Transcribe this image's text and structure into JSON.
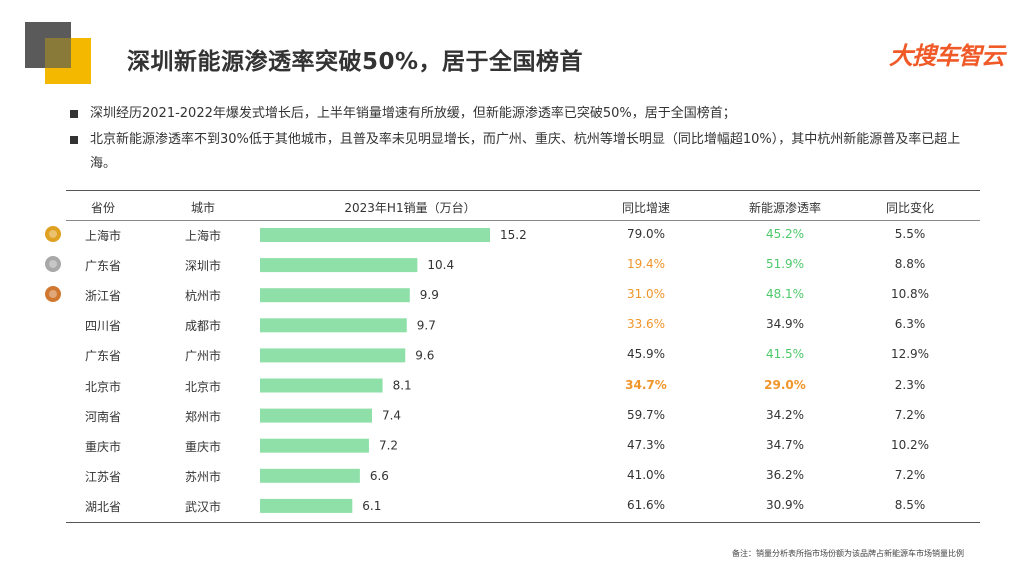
{
  "title": "深圳新能源渗透率突破50%，居于全国榜首",
  "logo": "大搜车智云",
  "bullets": [
    "深圳经历2021-2022年爆发式增长后，上半年销量增速有所放缓，但新能源渗透率已突破50%，居于全国榜首；",
    "北京新能源渗透率不到30%低于其他城市，且普及率未见明显增长，而广州、重庆、杭州等增长明显（同比增幅超10%），其中杭州新能源普及率已超上海。"
  ],
  "headers": {
    "province": "省份",
    "city": "城市",
    "sales": "2023年H1销量（万台）",
    "yoy": "同比增速",
    "penetration": "新能源渗透率",
    "change": "同比变化"
  },
  "colors": {
    "bar": "#8ee0a8",
    "green": "#4dc96a",
    "orange": "#f0952a",
    "normal": "#333333",
    "gold": "#e0a020",
    "silver": "#a8a8a8",
    "bronze": "#d07830"
  },
  "chart_data": {
    "type": "bar",
    "orientation": "horizontal",
    "categories": [
      "上海市",
      "深圳市",
      "杭州市",
      "成都市",
      "广州市",
      "北京市",
      "郑州市",
      "重庆市",
      "苏州市",
      "武汉市"
    ],
    "values": [
      15.2,
      10.4,
      9.9,
      9.7,
      9.6,
      8.1,
      7.4,
      7.2,
      6.6,
      6.1
    ],
    "xlabel": "2023年H1销量（万台）"
  },
  "rows": [
    {
      "province": "上海市",
      "city": "上海市",
      "sales": "15.2",
      "yoy": "79.0%",
      "yoy_style": "normal",
      "pen": "45.2%",
      "pen_style": "green",
      "change": "5.5%",
      "medal": "gold"
    },
    {
      "province": "广东省",
      "city": "深圳市",
      "sales": "10.4",
      "yoy": "19.4%",
      "yoy_style": "orange",
      "pen": "51.9%",
      "pen_style": "green",
      "change": "8.8%",
      "medal": "silver"
    },
    {
      "province": "浙江省",
      "city": "杭州市",
      "sales": "9.9",
      "yoy": "31.0%",
      "yoy_style": "orange",
      "pen": "48.1%",
      "pen_style": "green",
      "change": "10.8%",
      "medal": "bronze"
    },
    {
      "province": "四川省",
      "city": "成都市",
      "sales": "9.7",
      "yoy": "33.6%",
      "yoy_style": "orange",
      "pen": "34.9%",
      "pen_style": "normal",
      "change": "6.3%",
      "medal": ""
    },
    {
      "province": "广东省",
      "city": "广州市",
      "sales": "9.6",
      "yoy": "45.9%",
      "yoy_style": "normal",
      "pen": "41.5%",
      "pen_style": "green",
      "change": "12.9%",
      "medal": ""
    },
    {
      "province": "北京市",
      "city": "北京市",
      "sales": "8.1",
      "yoy": "34.7%",
      "yoy_style": "orange-bold",
      "pen": "29.0%",
      "pen_style": "orange-bold",
      "change": "2.3%",
      "medal": ""
    },
    {
      "province": "河南省",
      "city": "郑州市",
      "sales": "7.4",
      "yoy": "59.7%",
      "yoy_style": "normal",
      "pen": "34.2%",
      "pen_style": "normal",
      "change": "7.2%",
      "medal": ""
    },
    {
      "province": "重庆市",
      "city": "重庆市",
      "sales": "7.2",
      "yoy": "47.3%",
      "yoy_style": "normal",
      "pen": "34.7%",
      "pen_style": "normal",
      "change": "10.2%",
      "medal": ""
    },
    {
      "province": "江苏省",
      "city": "苏州市",
      "sales": "6.6",
      "yoy": "41.0%",
      "yoy_style": "normal",
      "pen": "36.2%",
      "pen_style": "normal",
      "change": "7.2%",
      "medal": ""
    },
    {
      "province": "湖北省",
      "city": "武汉市",
      "sales": "6.1",
      "yoy": "61.6%",
      "yoy_style": "normal",
      "pen": "30.9%",
      "pen_style": "normal",
      "change": "8.5%",
      "medal": ""
    }
  ],
  "note": "备注：销量分析表所指市场份额为该品牌占新能源车市场销量比例"
}
